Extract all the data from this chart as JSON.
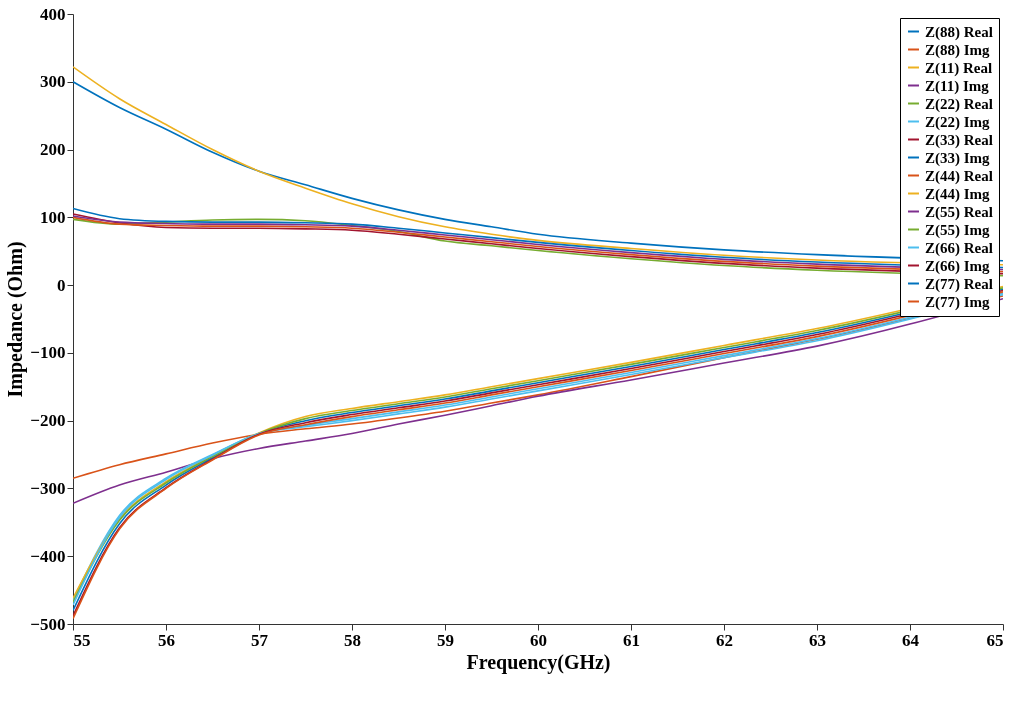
{
  "chart_data": {
    "type": "line",
    "xlabel": "Frequency(GHz)",
    "ylabel": "Impedance (Ohm)",
    "x": [
      55,
      55.5,
      56,
      56.5,
      57,
      57.5,
      58,
      58.5,
      59,
      59.5,
      60,
      61,
      62,
      63,
      65
    ],
    "xlim": [
      55,
      65
    ],
    "xticks": [
      55,
      56,
      57,
      58,
      59,
      60,
      61,
      62,
      63,
      64,
      65
    ],
    "ylim": [
      -500,
      400
    ],
    "yticks": [
      -500,
      -400,
      -300,
      -200,
      -100,
      0,
      100,
      200,
      300,
      400
    ],
    "grid": false,
    "legend": "top right",
    "marker": "none",
    "line_style": "solid",
    "series": [
      {
        "name": "Z(88) Real",
        "color": "#0072bd",
        "values": [
          300,
          262,
          230,
          196,
          168,
          148,
          128,
          111,
          97,
          86,
          75,
          62,
          52,
          45,
          36
        ]
      },
      {
        "name": "Z(88) Img",
        "color": "#d95319",
        "values": [
          -285,
          -265,
          -249,
          -233,
          -220,
          -212,
          -205,
          -196,
          -186,
          -174,
          -162,
          -135,
          -107,
          -80,
          -16
        ]
      },
      {
        "name": "Z(11) Real",
        "color": "#edb120",
        "values": [
          322,
          275,
          237,
          200,
          168,
          143,
          120,
          101,
          86,
          75,
          66,
          54,
          44,
          37,
          30
        ]
      },
      {
        "name": "Z(11) Img",
        "color": "#7e2f8e",
        "values": [
          -322,
          -295,
          -276,
          -256,
          -241,
          -230,
          -219,
          -205,
          -192,
          -178,
          -164,
          -140,
          -115,
          -90,
          -20
        ]
      },
      {
        "name": "Z(22) Real",
        "color": "#77ac30",
        "values": [
          97,
          90,
          93,
          96,
          97,
          95,
          88,
          79,
          65,
          58,
          51,
          39,
          29,
          22,
          14
        ]
      },
      {
        "name": "Z(22) Img",
        "color": "#4dbeee",
        "values": [
          -465,
          -340,
          -285,
          -250,
          -219,
          -207,
          -197,
          -187,
          -177,
          -165,
          -153,
          -129,
          -104,
          -79,
          -12
        ]
      },
      {
        "name": "Z(33) Real",
        "color": "#a2142f",
        "values": [
          105,
          92,
          85,
          84,
          84,
          83,
          81,
          75,
          68,
          61,
          54,
          42,
          32,
          25,
          17
        ]
      },
      {
        "name": "Z(33) Img",
        "color": "#0072bd",
        "values": [
          -480,
          -352,
          -295,
          -255,
          -219,
          -200,
          -188,
          -178,
          -168,
          -156,
          -144,
          -120,
          -95,
          -70,
          -6
        ]
      },
      {
        "name": "Z(44) Real",
        "color": "#d95319",
        "values": [
          100,
          90,
          88,
          87,
          87,
          86,
          84,
          78,
          71,
          64,
          57,
          45,
          35,
          28,
          20
        ]
      },
      {
        "name": "Z(44) Img",
        "color": "#edb120",
        "values": [
          -462,
          -345,
          -290,
          -252,
          -218,
          -194,
          -182,
          -172,
          -162,
          -150,
          -138,
          -114,
          -89,
          -64,
          -2
        ]
      },
      {
        "name": "Z(55) Real",
        "color": "#7e2f8e",
        "values": [
          102,
          93,
          91,
          90,
          90,
          89,
          87,
          81,
          74,
          67,
          60,
          48,
          38,
          31,
          23
        ]
      },
      {
        "name": "Z(55) Img",
        "color": "#77ac30",
        "values": [
          -468,
          -347,
          -292,
          -253,
          -219,
          -197,
          -185,
          -175,
          -165,
          -153,
          -141,
          -117,
          -92,
          -67,
          -4
        ]
      },
      {
        "name": "Z(66) Real",
        "color": "#4dbeee",
        "values": [
          -472,
          -343,
          -287,
          -251,
          -219,
          -209,
          -200,
          -190,
          -180,
          -168,
          -156,
          -132,
          -107,
          -82,
          -14
        ]
      },
      {
        "name": "Z(66) Img",
        "color": "#a2142f",
        "values": [
          -488,
          -358,
          -299,
          -257,
          -220,
          -203,
          -191,
          -181,
          -171,
          -159,
          -147,
          -123,
          -98,
          -73,
          -8
        ]
      },
      {
        "name": "Z(77) Real",
        "color": "#0072bd",
        "values": [
          113,
          98,
          94,
          93,
          93,
          92,
          90,
          84,
          77,
          70,
          63,
          51,
          41,
          34,
          26
        ]
      },
      {
        "name": "Z(77) Img",
        "color": "#d95319",
        "values": [
          -492,
          -360,
          -300,
          -258,
          -221,
          -206,
          -194,
          -184,
          -174,
          -162,
          -150,
          -126,
          -101,
          -76,
          -10
        ]
      }
    ]
  }
}
